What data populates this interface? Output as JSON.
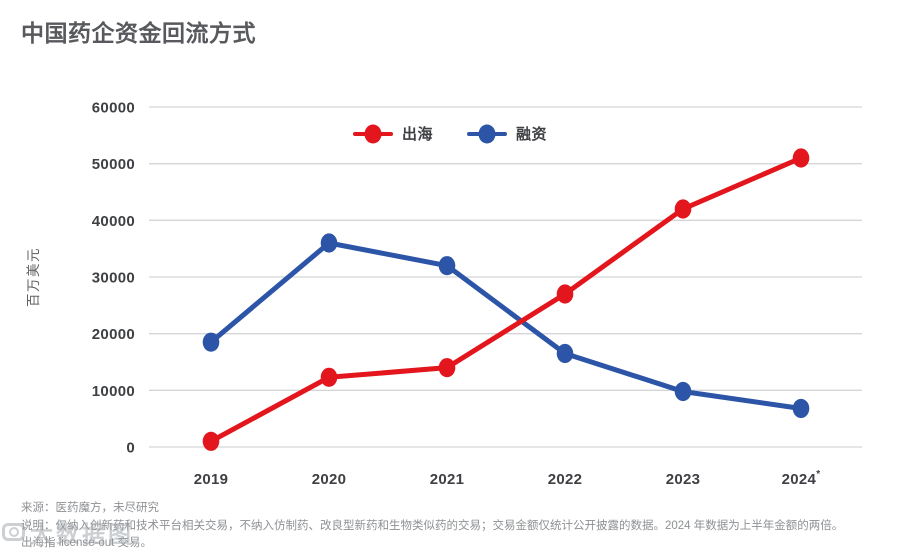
{
  "page": {
    "title": "中国药企资金回流方式"
  },
  "chart_data": {
    "type": "line",
    "x_labels": [
      "2019",
      "2020",
      "2021",
      "2022",
      "2023",
      "2024*"
    ],
    "series": [
      {
        "name": "出海",
        "color": "#e3151d",
        "values": [
          1000,
          12300,
          14000,
          27000,
          42000,
          51000
        ]
      },
      {
        "name": "融资",
        "color": "#2d55a7",
        "values": [
          18500,
          36000,
          32000,
          16500,
          9800,
          6800
        ]
      }
    ],
    "title": "中国药企资金回流方式",
    "xlabel": "",
    "ylabel": "百万美元",
    "ylim": [
      0,
      60000
    ],
    "ytick_step": 10000,
    "yticks": [
      "0",
      "10000",
      "20000",
      "30000",
      "40000",
      "50000",
      "60000"
    ],
    "grid": true,
    "legend_position": "top-center",
    "gridline_color": "#d4d5d7"
  },
  "footer": {
    "source": "来源：医药魔方，未尽研究",
    "note1": "说明：仅纳入创新药和技术平台相关交易，不纳入仿制药、改良型新药和生物类似药的交易；交易金额仅统计公开披露的数据。2024 年数据为上半年金额的两倍。",
    "note2": "出海指 license-out 交易。",
    "watermark": "大数据图"
  }
}
